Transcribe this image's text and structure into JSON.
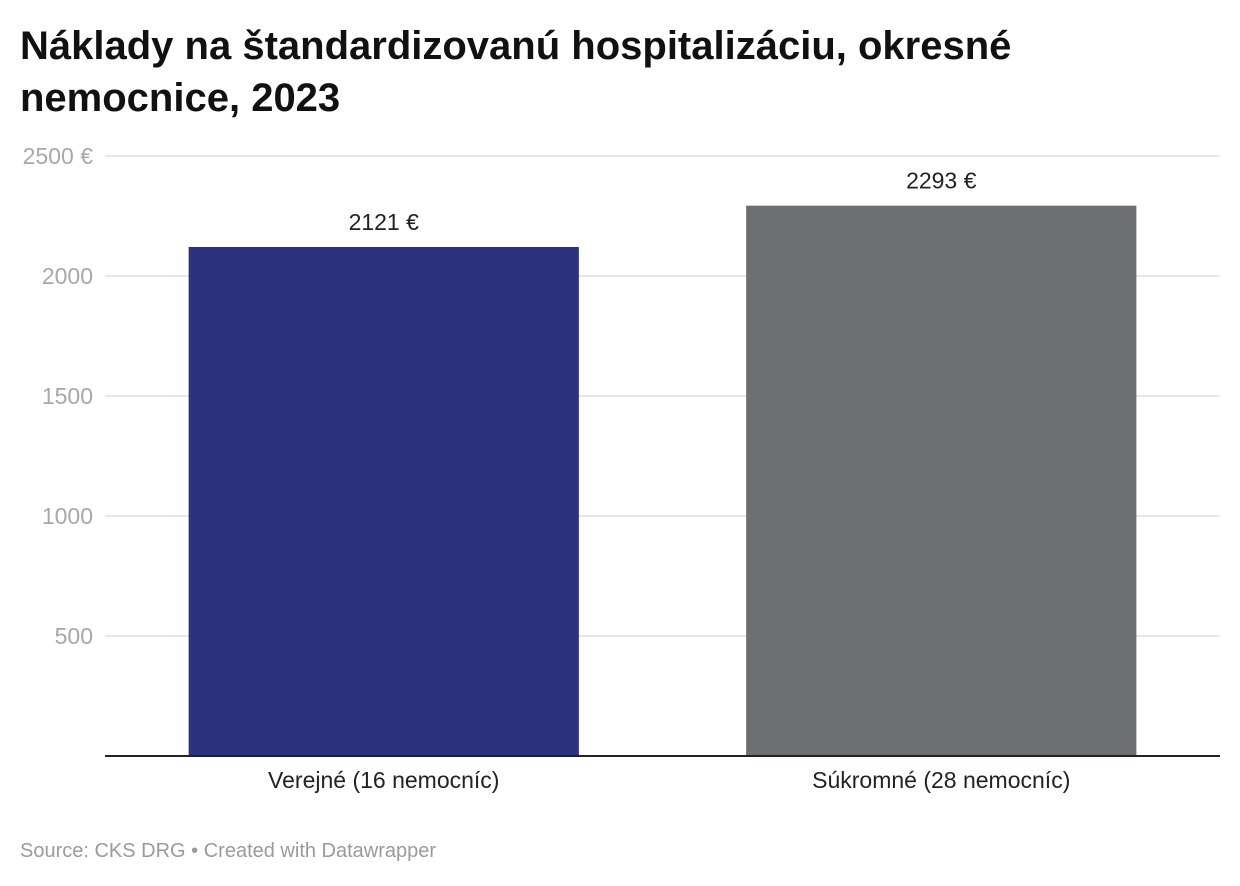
{
  "title": "Náklady na štandardizovanú hospitalizáciu, okresné nemocnice, 2023",
  "source": "Source: CKS DRG • Created with Datawrapper",
  "chart_data": {
    "type": "bar",
    "categories": [
      "Verejné (16 nemocníc)",
      "Súkromné (28 nemocníc)"
    ],
    "values": [
      2121,
      2293
    ],
    "value_labels": [
      "2121 €",
      "2293 €"
    ],
    "bar_colors": [
      "#2d327f",
      "#6d6e72"
    ],
    "ylim": [
      0,
      2500
    ],
    "yticks": [
      500,
      1000,
      1500,
      2000,
      2500
    ],
    "ytick_labels": [
      "500",
      "1000",
      "1500",
      "2000",
      "2500 €"
    ],
    "grid": true,
    "xlabel": "",
    "ylabel": ""
  }
}
